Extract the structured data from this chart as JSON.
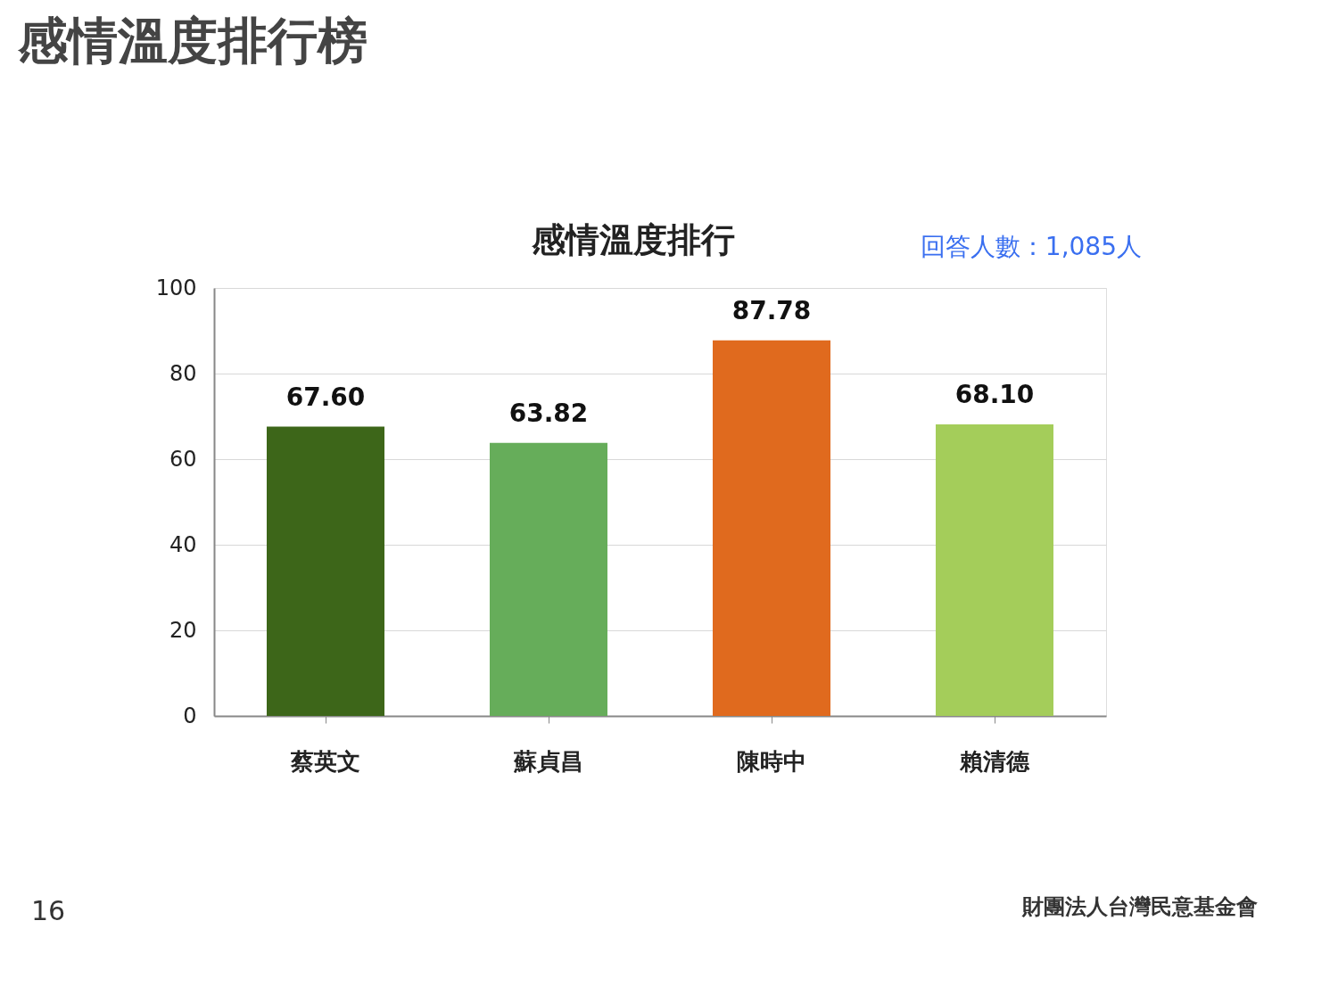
{
  "chart_data": {
    "type": "bar",
    "title": "感情溫度排行榜",
    "subtitle": "感情溫度排行",
    "annotations": [
      "回答人數：1,085人",
      "16",
      "財團法人台灣民意基金會"
    ],
    "categories": [
      "蔡英文",
      "蘇貞昌",
      "陳時中",
      "賴清德"
    ],
    "values": [
      67.6,
      63.82,
      87.78,
      68.1
    ],
    "colors": [
      "#3d6619",
      "#66ad5a",
      "#e06a1e",
      "#a4cd5a"
    ],
    "value_labels": [
      "67.60",
      "63.82",
      "87.78",
      "68.10"
    ],
    "ylim": [
      0,
      100
    ],
    "yticks": [
      0,
      20,
      40,
      60,
      80,
      100
    ],
    "grid": "y"
  }
}
